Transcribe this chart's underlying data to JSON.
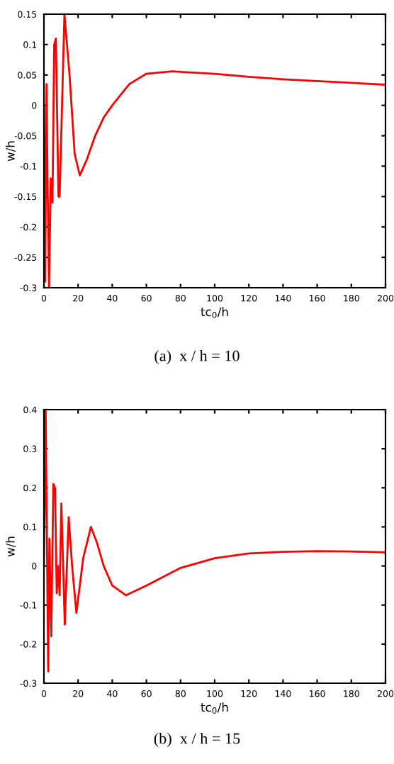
{
  "chart_data": [
    {
      "type": "line",
      "title": "(a)  x / h = 10",
      "xlabel": "tc$_{0}$/h",
      "ylabel": "w/h",
      "xlim": [
        0,
        200
      ],
      "ylim": [
        -0.3,
        0.15
      ],
      "xticks": [
        0,
        20,
        40,
        60,
        80,
        100,
        120,
        140,
        160,
        180,
        200
      ],
      "yticks": [
        -0.3,
        -0.25,
        -0.2,
        -0.15,
        -0.1,
        -0.05,
        0,
        0.05,
        0.1,
        0.15
      ],
      "grid": false,
      "legend": false,
      "series": [
        {
          "color": "#ff0000",
          "x": [
            0,
            0.7,
            1.5,
            2,
            3,
            4,
            5,
            6,
            7,
            8.5,
            9.2,
            12,
            15,
            18,
            21,
            25,
            30,
            35,
            40,
            50,
            60,
            75,
            100,
            120,
            140,
            160,
            180,
            200
          ],
          "values": [
            0,
            -0.29,
            0.035,
            -0.1,
            -0.3,
            -0.12,
            -0.16,
            0.1,
            0.11,
            -0.15,
            -0.15,
            0.15,
            0.05,
            -0.08,
            -0.115,
            -0.09,
            -0.05,
            -0.02,
            0.0,
            0.035,
            0.052,
            0.056,
            0.052,
            0.047,
            0.043,
            0.04,
            0.037,
            0.034
          ]
        }
      ]
    },
    {
      "type": "line",
      "title": "(b)  x / h = 15",
      "xlabel": "tc$_{0}$/h",
      "ylabel": "w/h",
      "xlim": [
        0,
        200
      ],
      "ylim": [
        -0.3,
        0.4
      ],
      "xticks": [
        0,
        20,
        40,
        60,
        80,
        100,
        120,
        140,
        160,
        180,
        200
      ],
      "yticks": [
        -0.3,
        -0.2,
        -0.1,
        0,
        0.1,
        0.2,
        0.3,
        0.4
      ],
      "grid": false,
      "legend": false,
      "series": [
        {
          "color": "#ff0000",
          "x": [
            0,
            1,
            2.5,
            3.2,
            4.3,
            5.5,
            6.5,
            7.5,
            8.2,
            9.2,
            10.2,
            12.2,
            14.5,
            16.5,
            19,
            23,
            27.5,
            31,
            35,
            40,
            48,
            60,
            80,
            100,
            120,
            140,
            160,
            180,
            200
          ],
          "values": [
            0,
            0.4,
            -0.27,
            0.07,
            -0.18,
            0.21,
            0.2,
            -0.07,
            0.0,
            -0.075,
            0.16,
            -0.15,
            0.125,
            0.0,
            -0.12,
            0.02,
            0.1,
            0.06,
            0.0,
            -0.05,
            -0.075,
            -0.05,
            -0.005,
            0.02,
            0.032,
            0.036,
            0.038,
            0.037,
            0.035
          ]
        }
      ]
    }
  ]
}
